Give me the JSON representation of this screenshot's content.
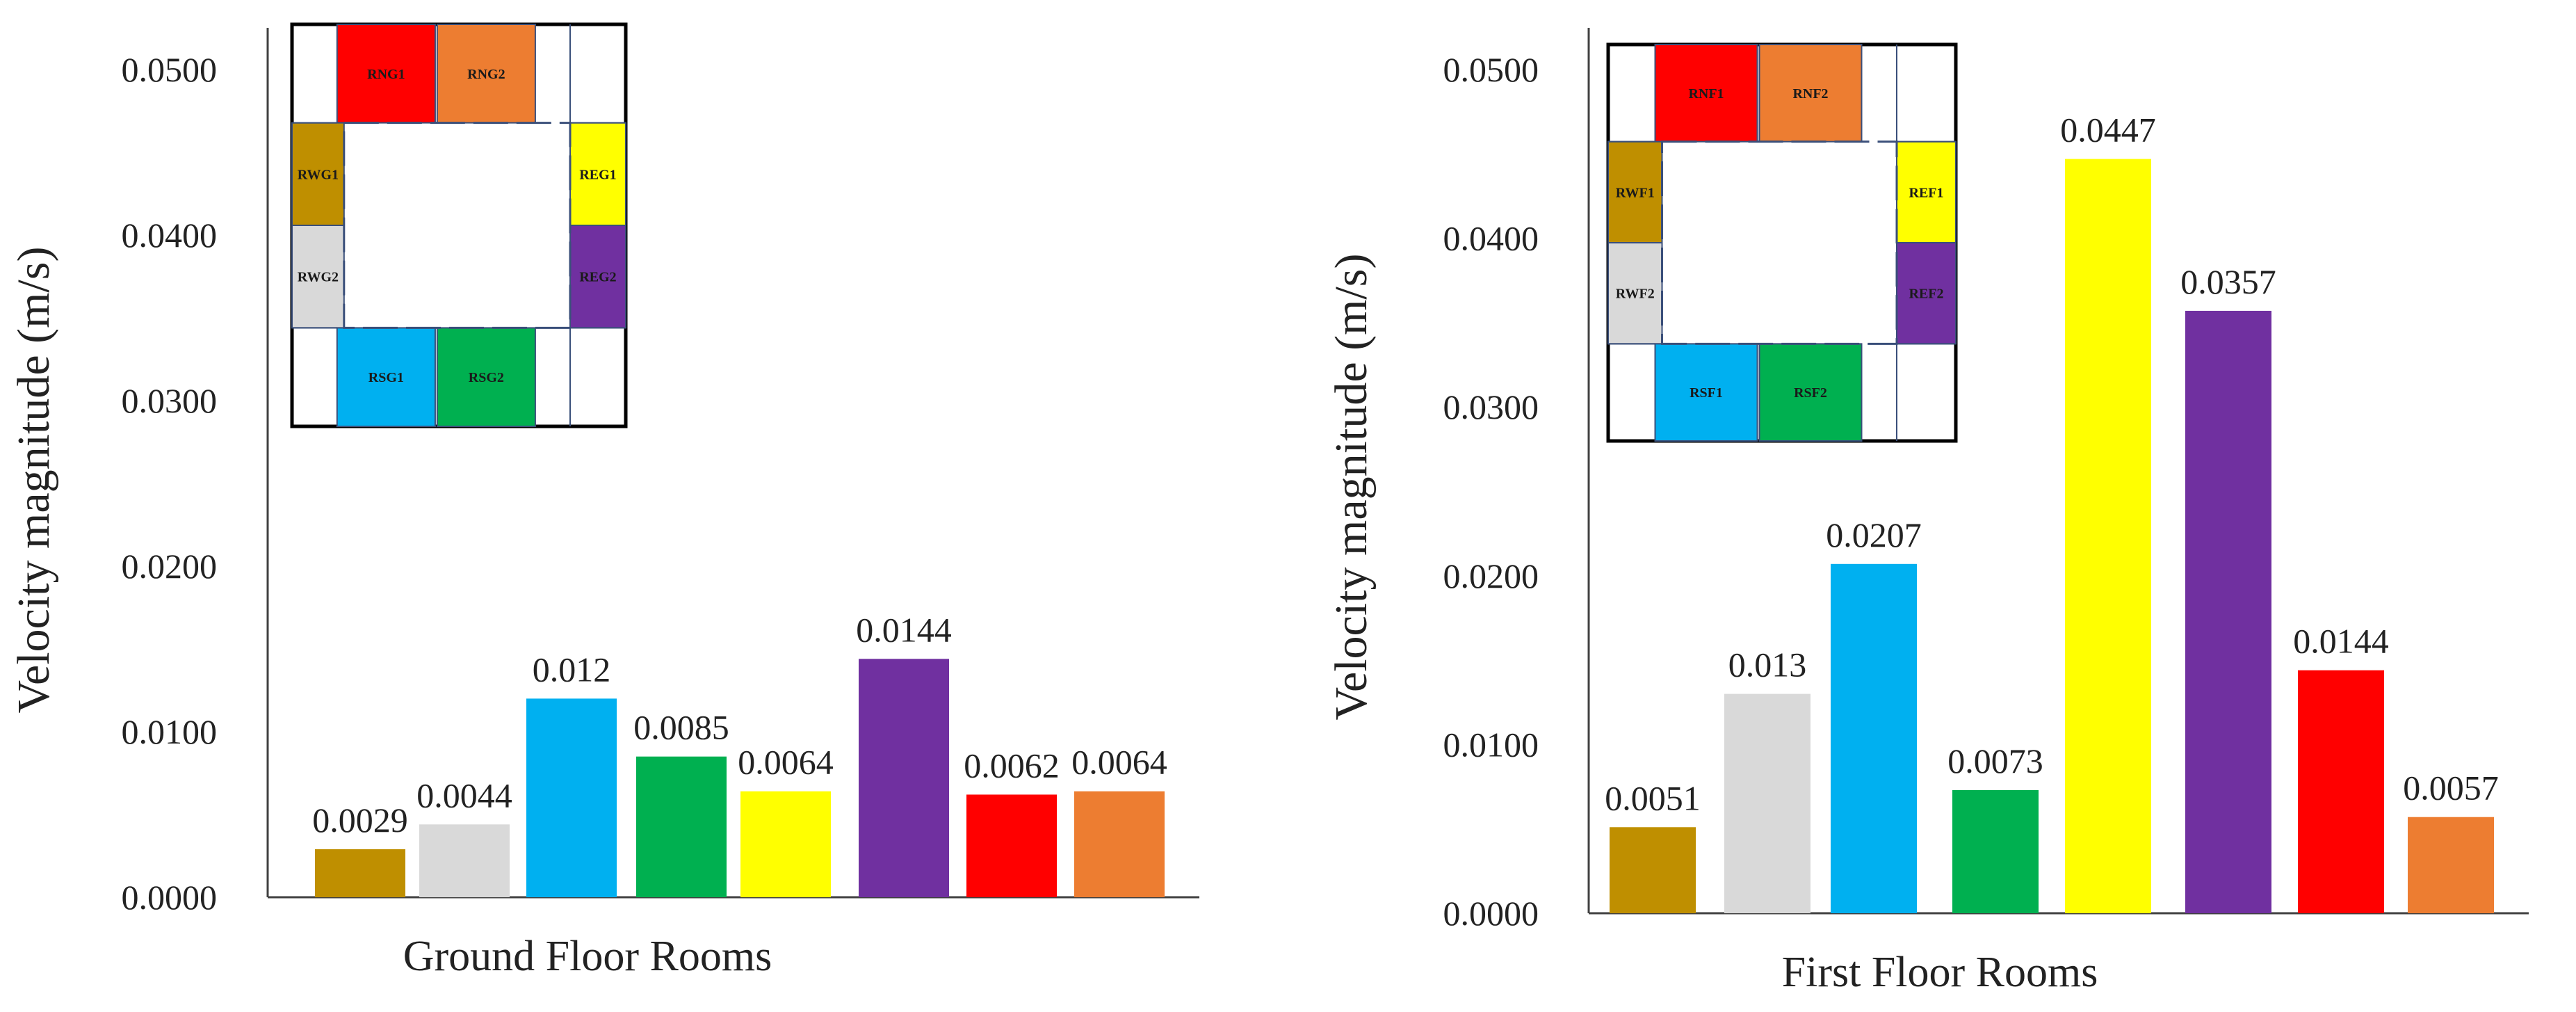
{
  "chart_data": [
    {
      "type": "bar",
      "categories": [
        "RWG1",
        "RWG2",
        "RSG1",
        "RSG2",
        "REG1",
        "REG2",
        "RNG1",
        "RNG2"
      ],
      "values": [
        0.0029,
        0.0044,
        0.012,
        0.0085,
        0.0064,
        0.0144,
        0.0062,
        0.0064
      ],
      "data_labels": [
        "0.0029",
        "0.0044",
        "0.012",
        "0.0085",
        "0.0064",
        "0.0144",
        "0.0062",
        "0.0064"
      ],
      "colors": [
        "#BF8F00",
        "#D9D9D9",
        "#00B0F0",
        "#00B050",
        "#FFFF00",
        "#7030A0",
        "#FF0000",
        "#ED7D31"
      ],
      "title": "",
      "xlabel": "Ground Floor Rooms",
      "ylabel": "Velocity magnitude (m/s)",
      "ylim": [
        0,
        0.05
      ],
      "yticks": [
        0.0,
        0.01,
        0.02,
        0.03,
        0.04,
        0.05
      ],
      "ytick_labels": [
        "0.0000",
        "0.0100",
        "0.0200",
        "0.0300",
        "0.0400",
        "0.0500"
      ],
      "grid": false,
      "legend": "inset floor-plan key (top-left)",
      "inset": {
        "north": [
          "RNG1",
          "RNG2"
        ],
        "west": [
          "RWG1",
          "RWG2"
        ],
        "east": [
          "REG1",
          "REG2"
        ],
        "south": [
          "RSG1",
          "RSG2"
        ]
      }
    },
    {
      "type": "bar",
      "categories": [
        "RWF1",
        "RWF2",
        "RSF1",
        "RSF2",
        "REF1",
        "REF2",
        "RNF1",
        "RNF2"
      ],
      "values": [
        0.0051,
        0.013,
        0.0207,
        0.0073,
        0.0447,
        0.0357,
        0.0144,
        0.0057
      ],
      "data_labels": [
        "0.0051",
        "0.013",
        "0.0207",
        "0.0073",
        "0.0447",
        "0.0357",
        "0.0144",
        "0.0057"
      ],
      "colors": [
        "#BF8F00",
        "#D9D9D9",
        "#00B0F0",
        "#00B050",
        "#FFFF00",
        "#7030A0",
        "#FF0000",
        "#ED7D31"
      ],
      "title": "",
      "xlabel": "First Floor Rooms",
      "ylabel": "Velocity magnitude (m/s)",
      "ylim": [
        0,
        0.05
      ],
      "yticks": [
        0.0,
        0.01,
        0.02,
        0.03,
        0.04,
        0.05
      ],
      "ytick_labels": [
        "0.0000",
        "0.0100",
        "0.0200",
        "0.0300",
        "0.0400",
        "0.0500"
      ],
      "grid": false,
      "legend": "inset floor-plan key (top-left)",
      "inset": {
        "north": [
          "RNF1",
          "RNF2"
        ],
        "west": [
          "RWF1",
          "RWF2"
        ],
        "east": [
          "REF1",
          "REF2"
        ],
        "south": [
          "RSF1",
          "RSF2"
        ]
      }
    }
  ]
}
